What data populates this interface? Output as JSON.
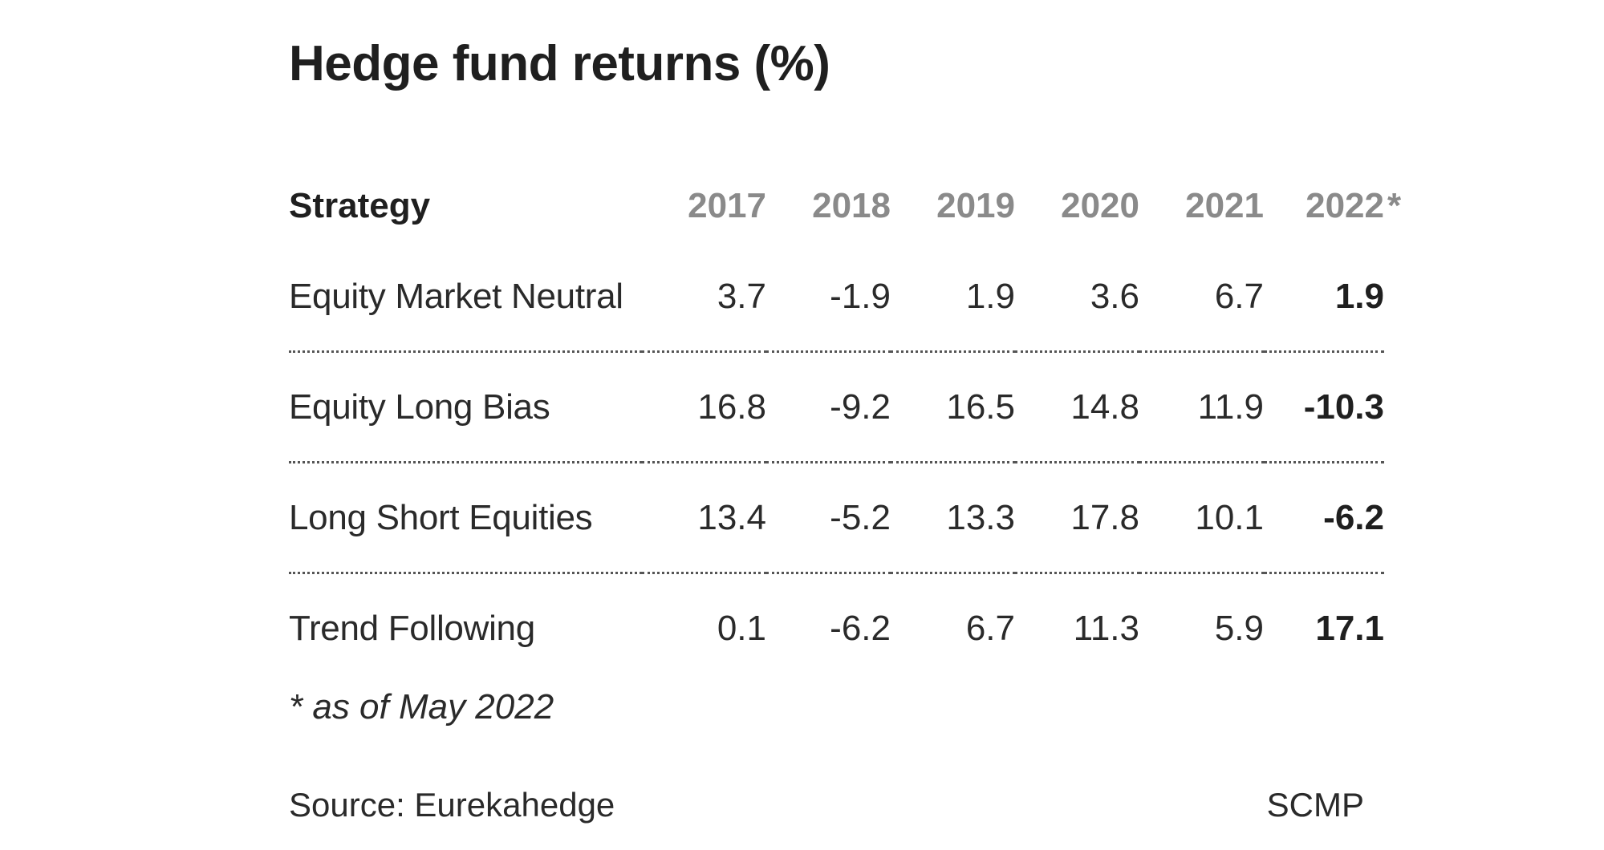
{
  "chart_data": {
    "type": "table",
    "title": "Hedge fund returns (%)",
    "columns": [
      "Strategy",
      "2017",
      "2018",
      "2019",
      "2020",
      "2021",
      "2022"
    ],
    "header_marks": {
      "2022": "*"
    },
    "rows": [
      {
        "strategy": "Equity Market Neutral",
        "values": [
          "3.7",
          "-1.9",
          "1.9",
          "3.6",
          "6.7",
          "1.9"
        ]
      },
      {
        "strategy": "Equity Long Bias",
        "values": [
          "16.8",
          "-9.2",
          "16.5",
          "14.8",
          "11.9",
          "-10.3"
        ]
      },
      {
        "strategy": "Long Short Equities",
        "values": [
          "13.4",
          "-5.2",
          "13.3",
          "17.8",
          "10.1",
          "-6.2"
        ]
      },
      {
        "strategy": "Trend Following",
        "values": [
          "0.1",
          "-6.2",
          "6.7",
          "11.3",
          "5.9",
          "17.1"
        ]
      }
    ],
    "highlight_column": "2022",
    "footnote": "* as of May 2022",
    "source": "Source: Eurekahedge",
    "credit": "SCMP"
  }
}
